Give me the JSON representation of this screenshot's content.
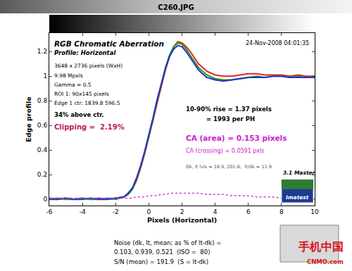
{
  "chart_data": {
    "type": "line",
    "title": "C260.JPG",
    "subtitle": "RGB Chromatic Aberration",
    "profile": "Profile: Horizontal",
    "date": "24-Nov-2008 04:01:35",
    "xlabel": "Pixels (Horizontal)",
    "ylabel": "Edge profile",
    "x": [
      -6,
      -5.5,
      -5,
      -4.5,
      -4,
      -3.5,
      -3,
      -2.5,
      -2,
      -1.5,
      -1.25,
      -1,
      -0.75,
      -0.5,
      -0.25,
      0,
      0.25,
      0.5,
      0.75,
      1,
      1.25,
      1.5,
      1.75,
      2,
      2.25,
      2.5,
      2.75,
      3,
      3.5,
      4,
      4.5,
      5,
      5.5,
      6,
      6.5,
      7,
      7.5,
      8,
      8.5,
      9,
      9.5,
      10
    ],
    "series": [
      {
        "color": "#e8231e",
        "line_style": "solid",
        "values": [
          0.01,
          0.0,
          0.01,
          0.0,
          0.01,
          0.0,
          0.01,
          0.0,
          0.01,
          0.02,
          0.04,
          0.08,
          0.15,
          0.25,
          0.37,
          0.5,
          0.64,
          0.78,
          0.92,
          1.05,
          1.16,
          1.24,
          1.28,
          1.27,
          1.24,
          1.2,
          1.15,
          1.1,
          1.04,
          1.01,
          1.0,
          1.0,
          1.01,
          1.02,
          1.02,
          1.01,
          1.01,
          1.01,
          1.0,
          1.01,
          1.0,
          1.0
        ]
      },
      {
        "color": "#1a9e1a",
        "line_style": "solid",
        "values": [
          0.0,
          0.01,
          0.0,
          0.0,
          0.01,
          0.0,
          0.0,
          0.01,
          0.0,
          0.02,
          0.04,
          0.08,
          0.16,
          0.26,
          0.38,
          0.51,
          0.65,
          0.8,
          0.94,
          1.07,
          1.17,
          1.24,
          1.27,
          1.26,
          1.22,
          1.17,
          1.12,
          1.07,
          1.01,
          0.98,
          0.97,
          0.97,
          0.98,
          0.99,
          1.0,
          0.99,
          1.0,
          1.0,
          0.99,
          1.0,
          0.99,
          1.0
        ]
      },
      {
        "color": "#2233cc",
        "line_style": "solid",
        "values": [
          0.0,
          0.0,
          0.01,
          0.0,
          0.0,
          0.01,
          0.0,
          0.0,
          0.01,
          0.02,
          0.05,
          0.09,
          0.17,
          0.27,
          0.39,
          0.52,
          0.66,
          0.81,
          0.94,
          1.06,
          1.16,
          1.22,
          1.25,
          1.24,
          1.2,
          1.15,
          1.1,
          1.05,
          0.99,
          0.97,
          0.96,
          0.97,
          0.98,
          0.99,
          0.99,
          0.99,
          1.0,
          1.0,
          0.99,
          0.99,
          0.99,
          0.99
        ]
      },
      {
        "color": "#cc44cc",
        "line_style": "dotted",
        "values": [
          0.01,
          0.01,
          0.01,
          0.01,
          0.01,
          0.01,
          0.01,
          0.01,
          0.01,
          0.01,
          0.01,
          0.01,
          0.02,
          0.02,
          0.02,
          0.03,
          0.03,
          0.03,
          0.04,
          0.04,
          0.05,
          0.05,
          0.05,
          0.05,
          0.05,
          0.05,
          0.05,
          0.05,
          0.04,
          0.04,
          0.04,
          0.03,
          0.03,
          0.03,
          0.02,
          0.02,
          0.02,
          0.01,
          0.01,
          0.01,
          0.01,
          0.01
        ]
      }
    ],
    "xlim": [
      -6,
      10
    ],
    "ylim": [
      -0.05,
      1.35
    ],
    "xticks": [
      -6,
      -4,
      -2,
      0,
      2,
      4,
      6,
      8,
      10
    ],
    "yticks": [
      0,
      0.2,
      0.4,
      0.6,
      0.8,
      1,
      1.2
    ],
    "grid": false,
    "info": [
      "3648 x 2736 pixels (WxH)",
      "9.98 Mpxls",
      "Gamma = 0.5",
      "ROI 1: 90x145 pixels",
      "Edge 1 ctr: 1839.8 596.5",
      "34% above ctr."
    ],
    "clipping": {
      "text": "Clipping =  2.19%",
      "color": "#c0206a"
    },
    "results": [
      {
        "text": "10-90% rise = 1.37 pixels",
        "color": "#000000"
      },
      {
        "text": "= 1993 per PH",
        "color": "#000000"
      },
      {
        "text": "CA (area) = 0.153 pixels",
        "color": "#cc22cc"
      },
      {
        "text": "CA (crossing) = 0.0591 pxls",
        "color": "#cc22cc"
      },
      {
        "text": "Dk, lt lvls = 16.9, 201.6;  lt/dk = 11.9",
        "color": "#555555"
      }
    ],
    "version": "3.1 Master",
    "logo": "Imatest",
    "footer": [
      "Noise (dk, lt, mean; as % of lt-dk) =",
      "0.103, 0.939, 0.521  (ISO =  80)",
      "S/N (mean) = 191.9  (S = lt-dk)"
    ],
    "watermark": [
      "手机中国",
      "CNMO.com"
    ]
  }
}
